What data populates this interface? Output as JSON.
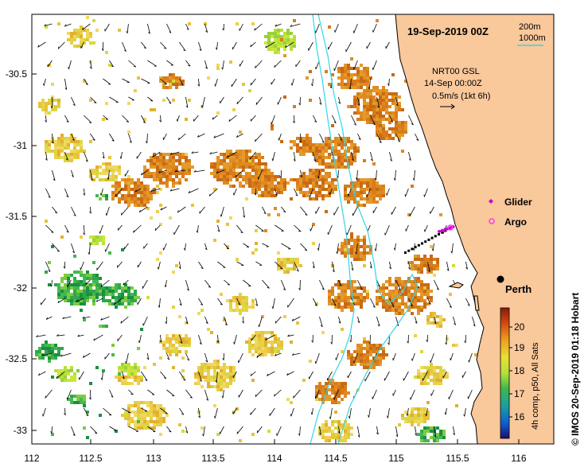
{
  "title": "19-Sep-2019 00Z",
  "depth_legend": {
    "contour_1": "200m",
    "contour_2": "1000m",
    "contour_color": "#33d6e6"
  },
  "current_note": {
    "line1": "NRT00 GSL",
    "line2": "14-Sep 00:00Z",
    "line3": "0.5m/s (1kt 6h)"
  },
  "legend": {
    "glider": "Glider",
    "argo": "Argo",
    "glider_color": "#cc00cc",
    "argo_color": "#ff33ff"
  },
  "city": {
    "name": "Perth",
    "lon": 115.86,
    "lat": -31.95
  },
  "x_ticks": [
    "112",
    "112.5",
    "113",
    "113.5",
    "114",
    "114.5",
    "115",
    "115.5",
    "116"
  ],
  "y_ticks": [
    "-30.5",
    "-31",
    "-31.5",
    "-32",
    "-32.5",
    "-33"
  ],
  "colorbar": {
    "ticks": [
      "20",
      "19",
      "18",
      "17",
      "16"
    ],
    "label": "4h comp, p50, All Sats"
  },
  "credit": "© IMOS 20-Sep-2019 01:18 Hobart",
  "colors": {
    "land": "#f9c89b",
    "coast": "#000000",
    "sst_warm": "#d97b1a",
    "sst_mid": "#e6c33a",
    "sst_cool": "#2ea84a"
  }
}
